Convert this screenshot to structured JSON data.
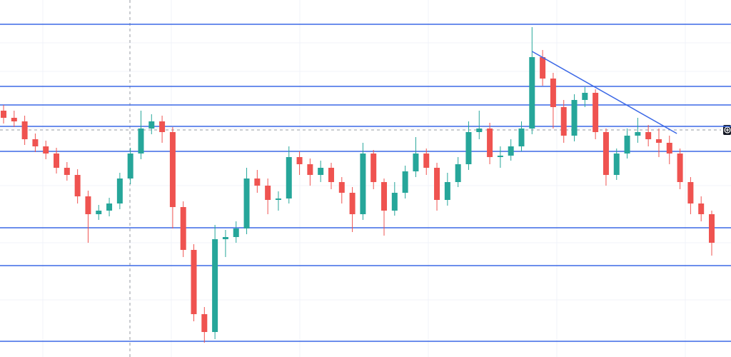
{
  "chart_data": {
    "type": "candlestick",
    "ylim": [
      0,
      500
    ],
    "up_color": "#26a69a",
    "down_color": "#ef5350",
    "level_color": "#3b68e6",
    "open": [
      345,
      335,
      330,
      305,
      295,
      285,
      265,
      255,
      225,
      200,
      205,
      215,
      250,
      285,
      320,
      330,
      315,
      210,
      150,
      60,
      35,
      165,
      168,
      180,
      250,
      240,
      220,
      222,
      280,
      270,
      255,
      265,
      245,
      230,
      200,
      285,
      245,
      205,
      230,
      260,
      285,
      265,
      220,
      245,
      270,
      315,
      320,
      280,
      282,
      295,
      320,
      420,
      390,
      350,
      310,
      360,
      370,
      315,
      255,
      285,
      310,
      315,
      305,
      300,
      285,
      245,
      215,
      200
    ],
    "high": [
      353,
      345,
      338,
      313,
      303,
      293,
      273,
      263,
      233,
      213,
      223,
      258,
      293,
      345,
      340,
      338,
      322,
      218,
      158,
      70,
      185,
      178,
      190,
      265,
      262,
      250,
      232,
      295,
      288,
      278,
      275,
      272,
      252,
      238,
      300,
      290,
      250,
      245,
      268,
      308,
      292,
      272,
      258,
      280,
      330,
      345,
      328,
      295,
      305,
      330,
      462,
      430,
      398,
      360,
      368,
      378,
      375,
      320,
      292,
      320,
      335,
      325,
      320,
      310,
      292,
      252,
      225,
      205
    ],
    "low": [
      327,
      322,
      297,
      287,
      277,
      257,
      247,
      215,
      160,
      192,
      197,
      207,
      242,
      277,
      312,
      300,
      180,
      140,
      50,
      20,
      25,
      140,
      160,
      172,
      230,
      200,
      205,
      215,
      255,
      240,
      245,
      235,
      215,
      175,
      192,
      235,
      170,
      198,
      222,
      252,
      255,
      205,
      212,
      238,
      262,
      305,
      270,
      265,
      275,
      288,
      312,
      380,
      320,
      300,
      302,
      350,
      305,
      240,
      248,
      278,
      300,
      295,
      280,
      270,
      235,
      200,
      190,
      142
    ],
    "close": [
      335,
      330,
      305,
      295,
      285,
      265,
      255,
      225,
      200,
      205,
      215,
      250,
      285,
      320,
      330,
      315,
      210,
      150,
      60,
      35,
      165,
      168,
      180,
      250,
      240,
      220,
      222,
      280,
      270,
      255,
      265,
      245,
      230,
      200,
      285,
      245,
      205,
      230,
      260,
      285,
      265,
      220,
      245,
      270,
      315,
      320,
      280,
      282,
      295,
      320,
      420,
      390,
      350,
      310,
      360,
      370,
      315,
      255,
      285,
      310,
      315,
      305,
      300,
      285,
      245,
      215,
      200,
      160
    ],
    "levels": [
      466,
      379,
      353,
      323,
      288,
      181,
      128,
      22
    ],
    "trendline": {
      "x": [
        50,
        63.7
      ],
      "values": [
        428,
        313
      ]
    }
  }
}
